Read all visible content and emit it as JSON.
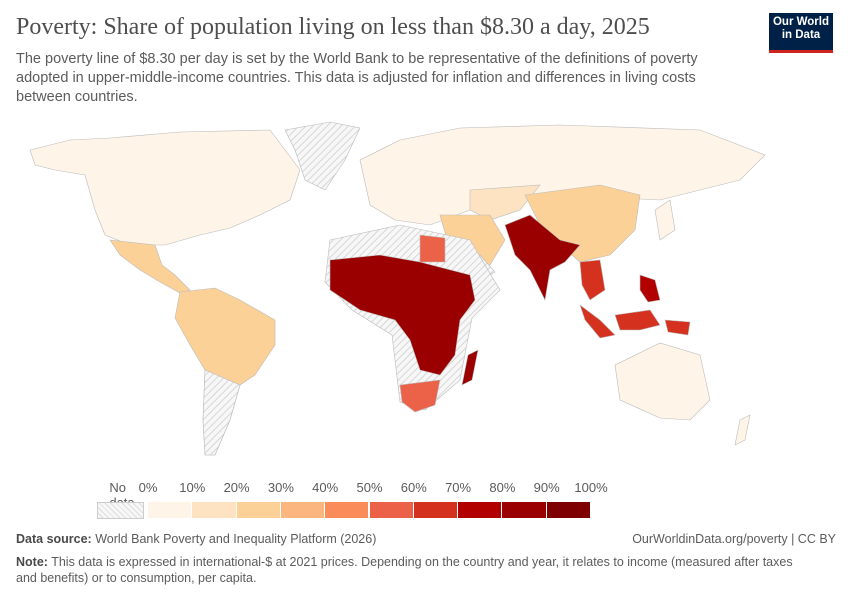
{
  "header": {
    "title": "Poverty: Share of population living on less than $8.30 a day, 2025",
    "subtitle": "The poverty line of $8.30 per day is set by the World Bank to be representative of the definitions of poverty adopted in upper-middle-income countries. This data is adjusted for inflation and differences in living costs between countries.",
    "logo_line1": "Our World",
    "logo_line2": "in Data"
  },
  "chart_data": {
    "type": "choropleth",
    "title": "Poverty: Share of population living on less than $8.30 a day, 2025",
    "legend": {
      "no_data_label": "No data",
      "tick_labels": [
        "0%",
        "10%",
        "20%",
        "30%",
        "40%",
        "50%",
        "60%",
        "70%",
        "80%",
        "90%",
        "100%"
      ],
      "bins": [
        {
          "range": [
            0,
            10
          ],
          "color": "#fef4e7"
        },
        {
          "range": [
            10,
            20
          ],
          "color": "#fde3c2"
        },
        {
          "range": [
            20,
            30
          ],
          "color": "#fcd197"
        },
        {
          "range": [
            30,
            40
          ],
          "color": "#fbb57f"
        },
        {
          "range": [
            40,
            50
          ],
          "color": "#f98c58"
        },
        {
          "range": [
            50,
            60
          ],
          "color": "#eb6248"
        },
        {
          "range": [
            60,
            70
          ],
          "color": "#d5311f"
        },
        {
          "range": [
            70,
            80
          ],
          "color": "#b20000"
        },
        {
          "range": [
            80,
            90
          ],
          "color": "#9a0000"
        },
        {
          "range": [
            90,
            100
          ],
          "color": "#7e0000"
        }
      ],
      "placement": "bottom"
    },
    "regions": [
      {
        "name": "North America",
        "bin": "0-10%"
      },
      {
        "name": "Mexico / Central America",
        "bin": "20-30%"
      },
      {
        "name": "South America",
        "bin": "20-30%"
      },
      {
        "name": "Europe / Russia",
        "bin": "0-10%"
      },
      {
        "name": "China",
        "bin": "20-30%"
      },
      {
        "name": "India / South Asia",
        "bin": "80-90%"
      },
      {
        "name": "Sub-Saharan Africa",
        "bin": "80-100%"
      },
      {
        "name": "Egypt",
        "bin": "40-50%"
      },
      {
        "name": "South Africa",
        "bin": "50-60%"
      },
      {
        "name": "Indonesia / Philippines",
        "bin": "60-70%"
      },
      {
        "name": "Australia",
        "bin": "0-10%"
      }
    ]
  },
  "footer": {
    "source_label": "Data source:",
    "source": "World Bank Poverty and Inequality Platform (2026)",
    "license": "OurWorldinData.org/poverty | CC BY",
    "note_label": "Note:",
    "note": "This data is expressed in international-$ at 2021 prices. Depending on the country and year, it relates to income (measured after taxes and benefits) or to consumption, per capita."
  }
}
